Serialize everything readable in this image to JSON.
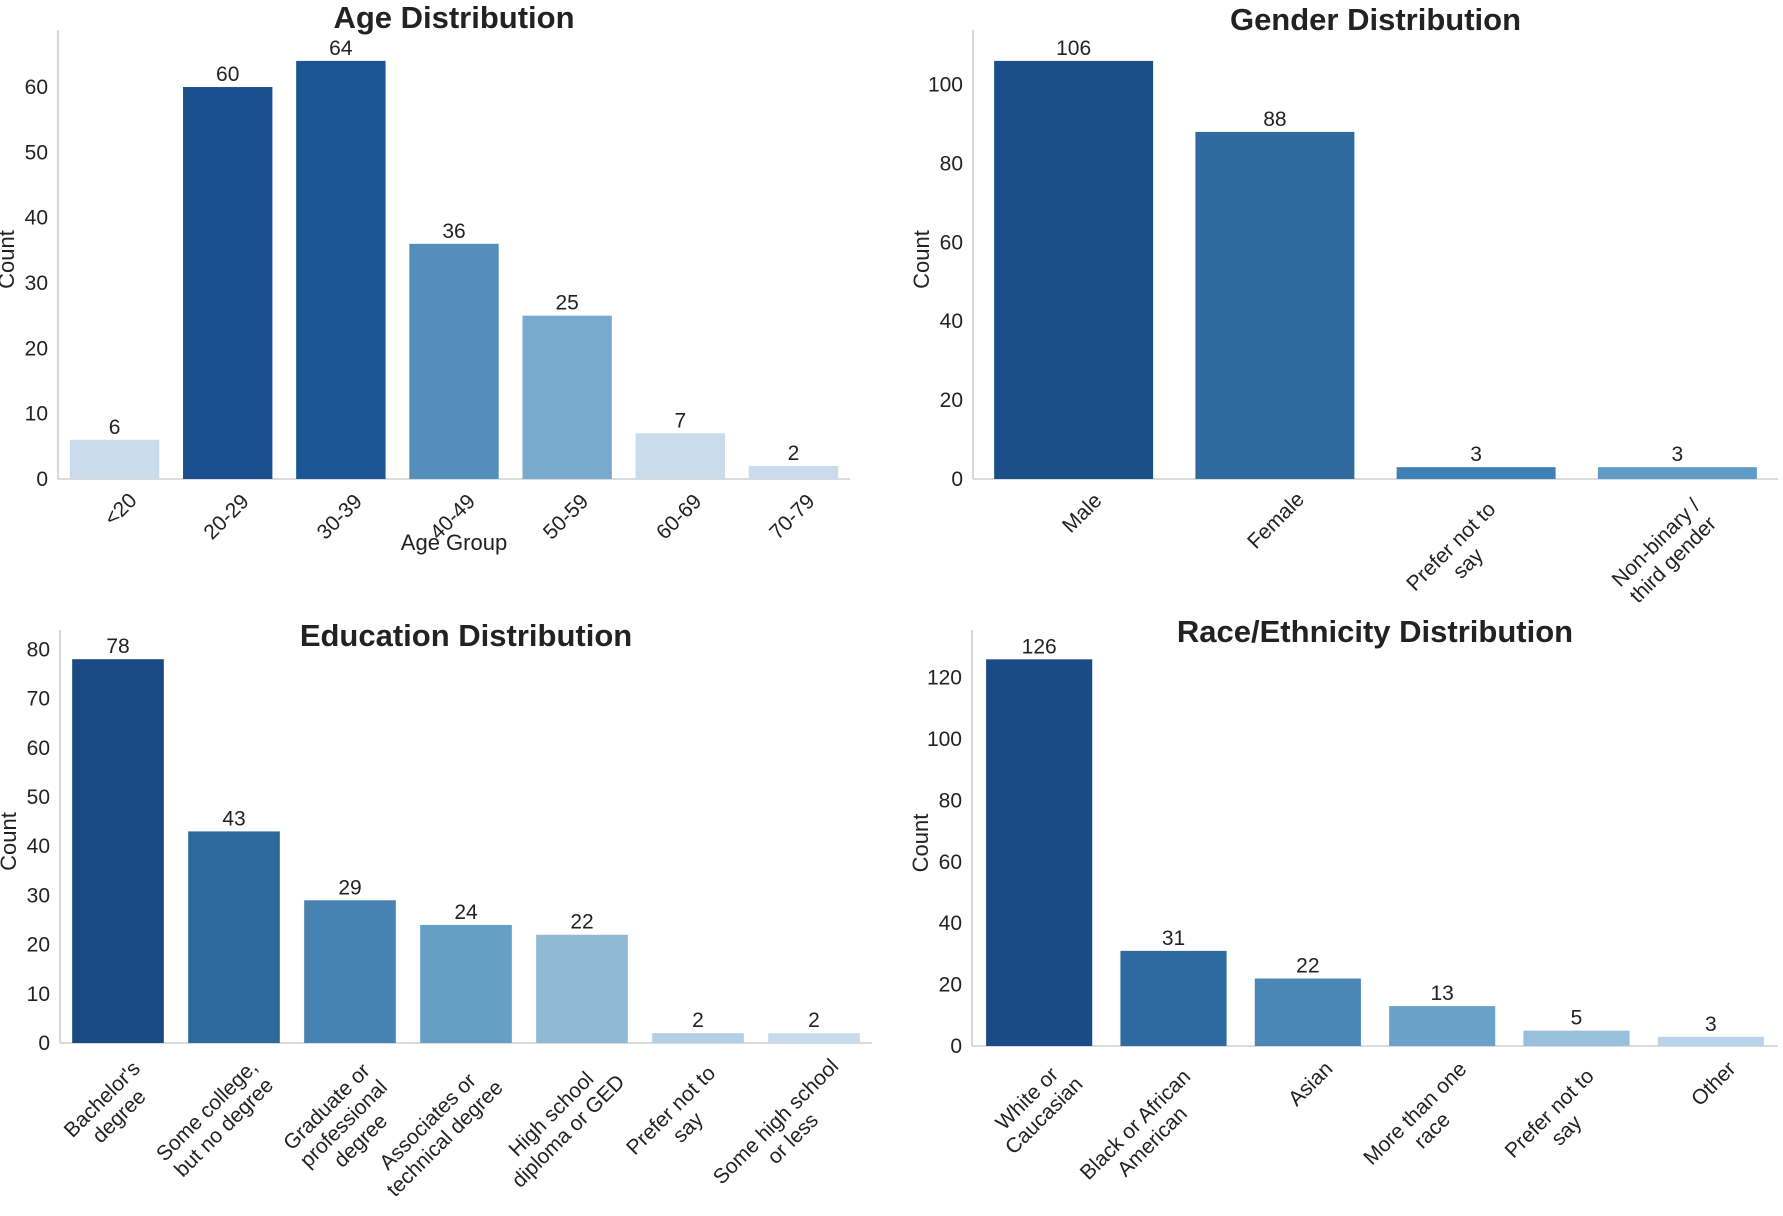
{
  "chart_data": [
    {
      "type": "bar",
      "title": "Age Distribution",
      "xlabel": "Age Group",
      "ylabel": "Count",
      "categories": [
        "<20",
        "20-29",
        "30-39",
        "40-49",
        "50-59",
        "60-69",
        "70-79"
      ],
      "values": [
        6,
        60,
        64,
        36,
        25,
        7,
        2
      ],
      "colors": [
        "#c9dbec",
        "#19508d",
        "#1b5593",
        "#548fbb",
        "#79aacd",
        "#c9dbec",
        "#c9dbec"
      ],
      "yticks": [
        0,
        10,
        20,
        30,
        40,
        50,
        60
      ],
      "ylim": [
        0,
        67.2
      ],
      "grid": false
    },
    {
      "type": "bar",
      "title": "Gender Distribution",
      "xlabel": "",
      "ylabel": "Count",
      "categories": [
        "Male",
        "Female",
        "Prefer not to\nsay",
        "Non-binary /\nthird gender"
      ],
      "values": [
        106,
        88,
        3,
        3
      ],
      "colors": [
        "#1b4f87",
        "#2e6a9e",
        "#3f80b6",
        "#5f9bc7"
      ],
      "yticks": [
        0,
        20,
        40,
        60,
        80,
        100
      ],
      "ylim": [
        0,
        111.3
      ],
      "grid": false
    },
    {
      "type": "bar",
      "title": "Education Distribution",
      "xlabel": "",
      "ylabel": "Count",
      "categories": [
        "Bachelor's\ndegree",
        "Some college,\nbut no degree",
        "Graduate or\nprofessional\ndegree",
        "Associates or\ntechnical degree",
        "High school\ndiploma or GED",
        "Prefer not to\nsay",
        "Some high school\nor less"
      ],
      "values": [
        78,
        43,
        29,
        24,
        22,
        2,
        2
      ],
      "colors": [
        "#1a4a83",
        "#2d699d",
        "#4683b3",
        "#669fc4",
        "#8fb9d5",
        "#b3cfe5",
        "#c8dbee"
      ],
      "yticks": [
        0,
        10,
        20,
        30,
        40,
        50,
        60,
        70,
        80
      ],
      "ylim": [
        0,
        81.9
      ],
      "grid": false
    },
    {
      "type": "bar",
      "title": "Race/Ethnicity Distribution",
      "xlabel": "",
      "ylabel": "Count",
      "categories": [
        "White or\nCaucasian",
        "Black or African\nAmerican",
        "Asian",
        "More than one\nrace",
        "Prefer not to\nsay",
        "Other"
      ],
      "values": [
        126,
        31,
        22,
        13,
        5,
        3
      ],
      "colors": [
        "#1a4b86",
        "#2e6aa0",
        "#4a86b6",
        "#6aa1c8",
        "#98c0dc",
        "#b9d4ea"
      ],
      "yticks": [
        0,
        20,
        40,
        60,
        80,
        100,
        120
      ],
      "ylim": [
        0,
        132.3
      ],
      "grid": false
    }
  ]
}
